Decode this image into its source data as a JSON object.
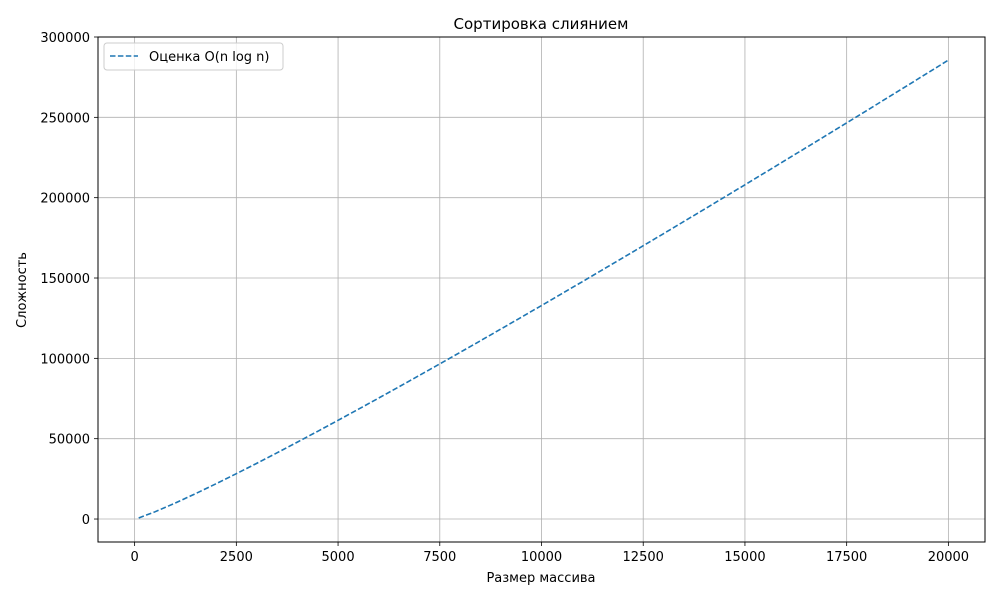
{
  "chart_data": {
    "type": "line",
    "title": "Сортировка слиянием",
    "xlabel": "Размер массива",
    "ylabel": "Сложность",
    "xlim": [
      -900,
      20900
    ],
    "ylim": [
      -14300,
      300000
    ],
    "x_ticks": [
      0,
      2500,
      5000,
      7500,
      10000,
      12500,
      15000,
      17500,
      20000
    ],
    "x_tick_labels": [
      "0",
      "2500",
      "5000",
      "7500",
      "10000",
      "12500",
      "15000",
      "17500",
      "20000"
    ],
    "y_ticks": [
      0,
      50000,
      100000,
      150000,
      200000,
      250000,
      300000
    ],
    "y_tick_labels": [
      "0",
      "50000",
      "100000",
      "150000",
      "200000",
      "250000",
      "300000"
    ],
    "grid": true,
    "legend_position": "top-left",
    "series": [
      {
        "name": "Оценка O(n log n)",
        "color": "#1f77b4",
        "line_style": "dashed",
        "x": [
          100,
          500,
          1000,
          1500,
          2000,
          2500,
          3000,
          3500,
          4000,
          4500,
          5000,
          5500,
          6000,
          6500,
          7000,
          7500,
          8000,
          8500,
          9000,
          9500,
          10000,
          10500,
          11000,
          11500,
          12000,
          12500,
          13000,
          13500,
          14000,
          14500,
          15000,
          15500,
          16000,
          16500,
          17000,
          17500,
          18000,
          18500,
          19000,
          19500,
          20000
        ],
        "y": [
          664,
          4483,
          9966,
          15826,
          21932,
          28219,
          34652,
          41204,
          47863,
          54612,
          61439,
          68338,
          75304,
          82330,
          89411,
          96544,
          103726,
          110954,
          118224,
          125534,
          132877,
          140255,
          147665,
          155110,
          162585,
          170091,
          177625,
          185185,
          192773,
          200386,
          208024,
          215686,
          223371,
          231078,
          238807,
          246557,
          254328,
          262120,
          269932,
          277762,
          285612
        ]
      }
    ]
  }
}
